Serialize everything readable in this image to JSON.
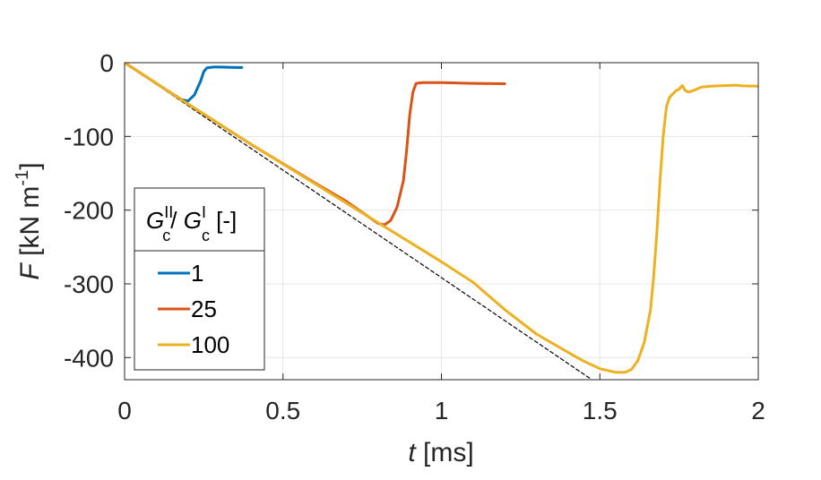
{
  "chart_data": {
    "type": "line",
    "xlabel": {
      "var": "t",
      "rest": " [ms]"
    },
    "ylabel": {
      "var": "F",
      "rest": " [kN m",
      "sup": "-1",
      "close": "]"
    },
    "xlim": [
      0,
      2
    ],
    "ylim": [
      -430,
      0
    ],
    "xticks": [
      0,
      0.5,
      1,
      1.5,
      2
    ],
    "xtick_labels": [
      "0",
      "0.5",
      "1",
      "1.5",
      "2"
    ],
    "yticks": [
      0,
      -100,
      -200,
      -300,
      -400
    ],
    "ytick_labels": [
      "0",
      "-100",
      "-200",
      "-300",
      "-400"
    ],
    "grid": true,
    "legend": {
      "placement": "left-center",
      "title": {
        "g": "G",
        "sup1": "II",
        "sub1": "c",
        "slash": "/ ",
        "sup2": "I",
        "sub2": "c",
        "unit": " [-]"
      }
    },
    "series": [
      {
        "name": "1",
        "color": "#0072BD",
        "x": [
          0,
          0.05,
          0.1,
          0.15,
          0.18,
          0.2,
          0.22,
          0.24,
          0.25,
          0.26,
          0.28,
          0.3,
          0.35,
          0.37
        ],
        "y": [
          0,
          -14,
          -28,
          -42,
          -50,
          -52,
          -44,
          -25,
          -12,
          -7,
          -6,
          -6,
          -6.5,
          -6.5
        ]
      },
      {
        "name": "25",
        "color": "#D95319",
        "x": [
          0,
          0.2,
          0.4,
          0.6,
          0.7,
          0.76,
          0.8,
          0.82,
          0.84,
          0.86,
          0.88,
          0.89,
          0.9,
          0.91,
          0.92,
          0.94,
          1.0,
          1.1,
          1.2
        ],
        "y": [
          0,
          -56,
          -111,
          -163,
          -188,
          -206,
          -218,
          -220,
          -214,
          -196,
          -160,
          -120,
          -70,
          -40,
          -28,
          -27,
          -27,
          -28,
          -28.5
        ]
      },
      {
        "name": "100",
        "color": "#EDB120",
        "x": [
          0,
          0.2,
          0.4,
          0.6,
          0.8,
          1.0,
          1.1,
          1.2,
          1.3,
          1.4,
          1.45,
          1.5,
          1.55,
          1.58,
          1.6,
          1.62,
          1.64,
          1.66,
          1.67,
          1.68,
          1.69,
          1.7,
          1.71,
          1.72,
          1.74,
          1.75,
          1.76,
          1.77,
          1.78,
          1.8,
          1.82,
          1.85,
          1.9,
          1.93,
          1.95,
          2.0
        ],
        "y": [
          0,
          -56,
          -111,
          -164,
          -217,
          -270,
          -298,
          -335,
          -368,
          -393,
          -405,
          -415,
          -420,
          -420,
          -416,
          -404,
          -380,
          -335,
          -290,
          -230,
          -160,
          -100,
          -60,
          -47,
          -38,
          -36,
          -31,
          -38,
          -40,
          -37,
          -33,
          -32,
          -31,
          -30.5,
          -31.5,
          -32
        ]
      },
      {
        "name": "",
        "color": "#000000",
        "dashed": true,
        "x": [
          0,
          1.475
        ],
        "y": [
          0,
          -430
        ]
      }
    ]
  }
}
